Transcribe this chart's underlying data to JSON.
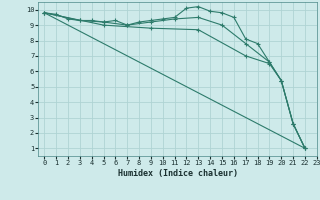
{
  "xlabel": "Humidex (Indice chaleur)",
  "xlim": [
    -0.5,
    23
  ],
  "ylim": [
    0.5,
    10.5
  ],
  "background_color": "#ceeaea",
  "grid_color": "#afd4d4",
  "line_color": "#2d7b6b",
  "line1": {
    "x": [
      0,
      1,
      2,
      3,
      4,
      5,
      6,
      7,
      8,
      9,
      10,
      11,
      12,
      13,
      14,
      15,
      16,
      17,
      18,
      19,
      20,
      21,
      22
    ],
    "y": [
      9.8,
      9.7,
      9.4,
      9.3,
      9.3,
      9.2,
      9.3,
      9.0,
      9.2,
      9.3,
      9.4,
      9.5,
      10.1,
      10.2,
      9.9,
      9.8,
      9.5,
      8.1,
      7.8,
      6.6,
      5.4,
      2.6,
      1.0
    ]
  },
  "line2": {
    "x": [
      0,
      3,
      5,
      7,
      9,
      11,
      13,
      15,
      17,
      19,
      20,
      21,
      22
    ],
    "y": [
      9.8,
      9.3,
      9.2,
      9.0,
      9.2,
      9.4,
      9.5,
      9.0,
      7.8,
      6.6,
      5.4,
      2.6,
      1.0
    ]
  },
  "line3": {
    "x": [
      0,
      5,
      9,
      13,
      17,
      19,
      20,
      21,
      22
    ],
    "y": [
      9.8,
      9.0,
      8.8,
      8.7,
      7.0,
      6.5,
      5.4,
      2.6,
      1.0
    ]
  },
  "line4": {
    "x": [
      0,
      22
    ],
    "y": [
      9.8,
      1.0
    ]
  }
}
